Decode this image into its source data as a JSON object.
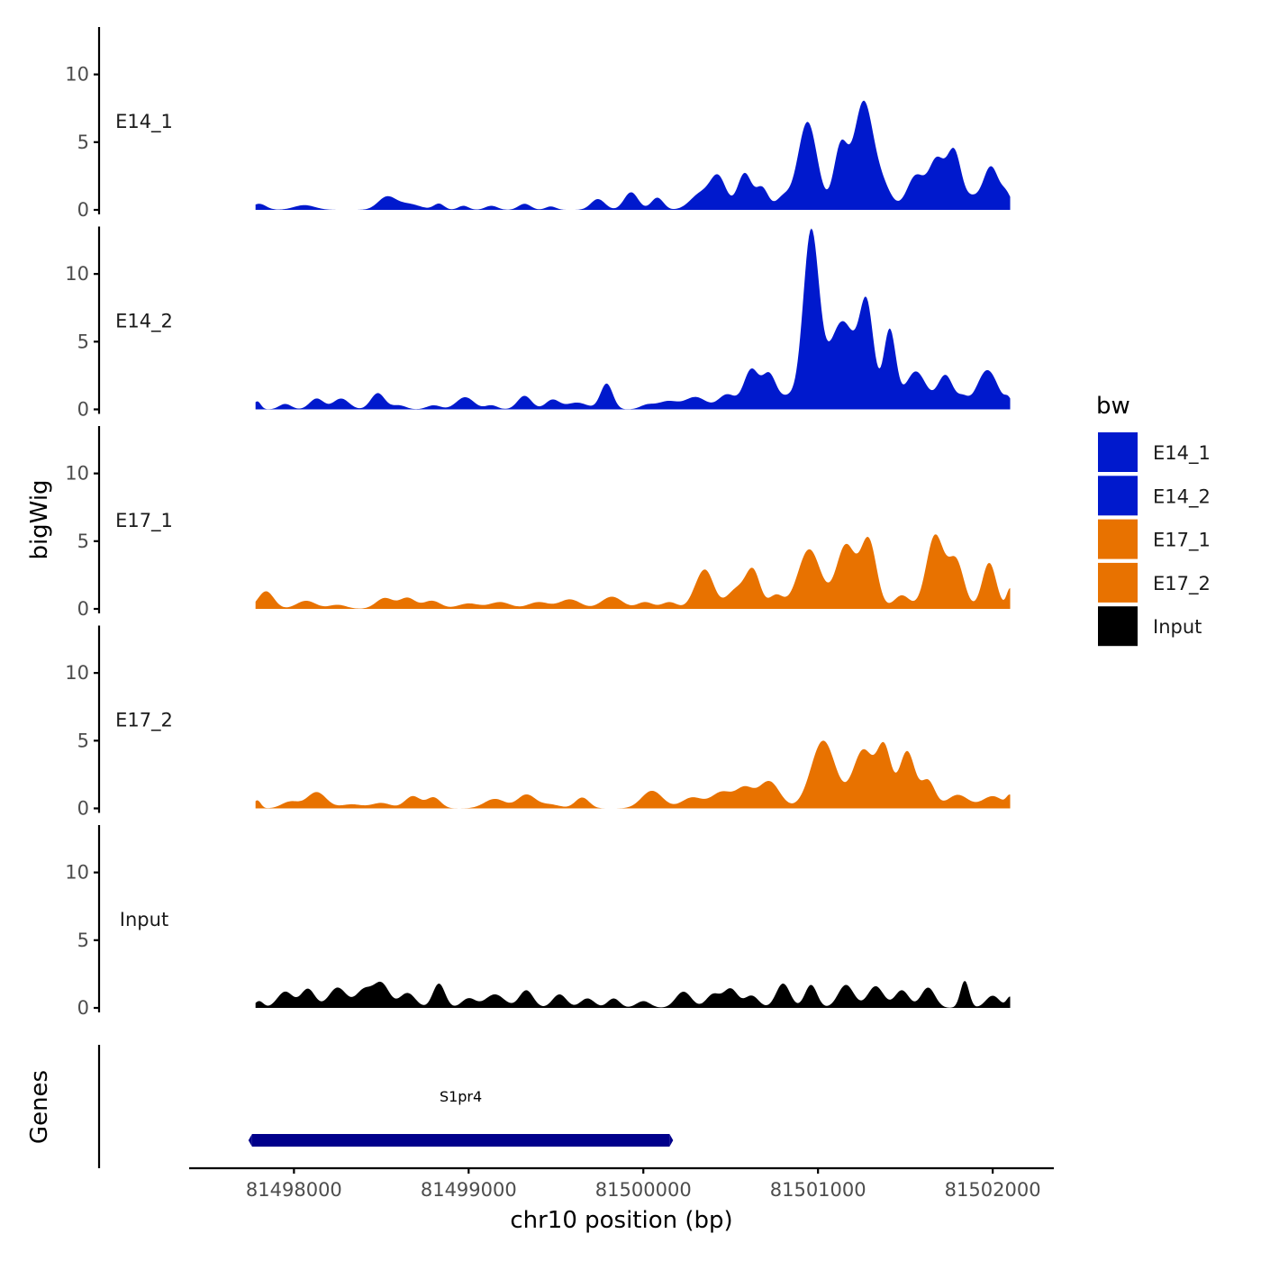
{
  "chart_data": {
    "type": "area",
    "xlabel": "chr10 position (bp)",
    "ylabel": "bigWig",
    "genes_label": "Genes",
    "xlim": [
      81497400,
      81502350
    ],
    "data_x_range": [
      81497780,
      81502100
    ],
    "ylim": [
      0,
      13.5
    ],
    "y_ticks": [
      0,
      5,
      10
    ],
    "x_ticks": [
      81498000,
      81499000,
      81500000,
      81501000,
      81502000
    ],
    "x_tick_labels": [
      "81498000",
      "81499000",
      "81500000",
      "81501000",
      "81502000"
    ],
    "legend": {
      "title": "bw",
      "entries": [
        {
          "label": "E14_1",
          "color": "#0019CD"
        },
        {
          "label": "E14_2",
          "color": "#0019CD"
        },
        {
          "label": "E17_1",
          "color": "#E87200"
        },
        {
          "label": "E17_2",
          "color": "#E87200"
        },
        {
          "label": "Input",
          "color": "#000000"
        }
      ]
    },
    "series": [
      {
        "name": "E14_1",
        "color": "#0019CD",
        "peaks": [
          [
            81497800,
            0.45,
            40
          ],
          [
            81498060,
            0.35,
            60
          ],
          [
            81498530,
            0.9,
            50
          ],
          [
            81498650,
            0.45,
            70
          ],
          [
            81498830,
            0.45,
            30
          ],
          [
            81498970,
            0.3,
            30
          ],
          [
            81499130,
            0.3,
            35
          ],
          [
            81499320,
            0.45,
            35
          ],
          [
            81499470,
            0.25,
            30
          ],
          [
            81499740,
            0.8,
            40
          ],
          [
            81499930,
            1.3,
            40
          ],
          [
            81500080,
            0.9,
            35
          ],
          [
            81500330,
            1.2,
            60
          ],
          [
            81500430,
            2.3,
            45
          ],
          [
            81500580,
            2.7,
            40
          ],
          [
            81500680,
            1.6,
            35
          ],
          [
            81500800,
            0.9,
            40
          ],
          [
            81500940,
            6.5,
            55
          ],
          [
            81501130,
            4.6,
            40
          ],
          [
            81501260,
            7.9,
            55
          ],
          [
            81501370,
            1.6,
            50
          ],
          [
            81501560,
            2.5,
            50
          ],
          [
            81501680,
            3.6,
            45
          ],
          [
            81501780,
            4.2,
            40
          ],
          [
            81501880,
            0.8,
            40
          ],
          [
            81501990,
            3.2,
            45
          ],
          [
            81502080,
            1.0,
            30
          ]
        ]
      },
      {
        "name": "E14_2",
        "color": "#0019CD",
        "peaks": [
          [
            81497790,
            0.6,
            20
          ],
          [
            81497950,
            0.4,
            35
          ],
          [
            81498130,
            0.8,
            40
          ],
          [
            81498270,
            0.8,
            45
          ],
          [
            81498480,
            1.2,
            40
          ],
          [
            81498600,
            0.3,
            40
          ],
          [
            81498800,
            0.3,
            40
          ],
          [
            81498980,
            0.9,
            50
          ],
          [
            81499130,
            0.3,
            35
          ],
          [
            81499320,
            1.0,
            40
          ],
          [
            81499480,
            0.7,
            40
          ],
          [
            81499620,
            0.5,
            60
          ],
          [
            81499790,
            1.9,
            35
          ],
          [
            81500020,
            0.3,
            40
          ],
          [
            81500140,
            0.6,
            60
          ],
          [
            81500300,
            0.9,
            60
          ],
          [
            81500480,
            1.1,
            50
          ],
          [
            81500600,
            1.3,
            40
          ],
          [
            81500630,
            1.8,
            40
          ],
          [
            81500720,
            2.5,
            40
          ],
          [
            81500830,
            0.9,
            50
          ],
          [
            81500960,
            12.8,
            45
          ],
          [
            81501140,
            6.5,
            80
          ],
          [
            81501280,
            6.8,
            40
          ],
          [
            81501410,
            5.8,
            35
          ],
          [
            81501560,
            2.8,
            60
          ],
          [
            81501730,
            2.5,
            45
          ],
          [
            81501830,
            0.7,
            30
          ],
          [
            81501970,
            2.9,
            60
          ],
          [
            81502090,
            0.6,
            20
          ]
        ]
      },
      {
        "name": "E17_1",
        "color": "#E87200",
        "peaks": [
          [
            81497840,
            1.3,
            45
          ],
          [
            81498070,
            0.6,
            55
          ],
          [
            81498250,
            0.3,
            50
          ],
          [
            81498520,
            0.8,
            50
          ],
          [
            81498650,
            0.8,
            45
          ],
          [
            81498790,
            0.6,
            50
          ],
          [
            81499000,
            0.4,
            60
          ],
          [
            81499180,
            0.5,
            60
          ],
          [
            81499400,
            0.5,
            60
          ],
          [
            81499580,
            0.7,
            60
          ],
          [
            81499820,
            0.9,
            60
          ],
          [
            81500010,
            0.5,
            45
          ],
          [
            81500150,
            0.5,
            45
          ],
          [
            81500300,
            0.8,
            40
          ],
          [
            81500360,
            2.6,
            45
          ],
          [
            81500540,
            1.5,
            60
          ],
          [
            81500630,
            2.5,
            40
          ],
          [
            81500760,
            1.0,
            40
          ],
          [
            81500950,
            4.4,
            65
          ],
          [
            81501160,
            4.7,
            55
          ],
          [
            81501290,
            5.0,
            45
          ],
          [
            81501480,
            1.0,
            45
          ],
          [
            81501670,
            5.4,
            50
          ],
          [
            81501790,
            3.5,
            45
          ],
          [
            81501980,
            3.4,
            40
          ],
          [
            81502100,
            1.5,
            20
          ]
        ]
      },
      {
        "name": "E17_2",
        "color": "#E87200",
        "peaks": [
          [
            81497790,
            0.6,
            20
          ],
          [
            81497980,
            0.5,
            50
          ],
          [
            81498130,
            1.2,
            55
          ],
          [
            81498330,
            0.3,
            60
          ],
          [
            81498500,
            0.4,
            55
          ],
          [
            81498680,
            0.9,
            45
          ],
          [
            81498800,
            0.8,
            40
          ],
          [
            81499150,
            0.7,
            60
          ],
          [
            81499330,
            1.0,
            50
          ],
          [
            81499460,
            0.3,
            60
          ],
          [
            81499650,
            0.8,
            40
          ],
          [
            81500050,
            1.3,
            60
          ],
          [
            81500280,
            0.8,
            60
          ],
          [
            81500450,
            1.2,
            60
          ],
          [
            81500580,
            1.4,
            50
          ],
          [
            81500720,
            2.0,
            60
          ],
          [
            81501030,
            5.0,
            70
          ],
          [
            81501260,
            4.3,
            60
          ],
          [
            81501380,
            4.2,
            40
          ],
          [
            81501510,
            4.2,
            45
          ],
          [
            81501630,
            2.0,
            40
          ],
          [
            81501800,
            1.0,
            60
          ],
          [
            81502000,
            0.9,
            60
          ],
          [
            81502100,
            0.8,
            20
          ]
        ]
      },
      {
        "name": "Input",
        "color": "#000000",
        "peaks": [
          [
            81497800,
            0.5,
            25
          ],
          [
            81497950,
            1.2,
            45
          ],
          [
            81498080,
            1.4,
            40
          ],
          [
            81498250,
            1.5,
            50
          ],
          [
            81498400,
            1.3,
            45
          ],
          [
            81498500,
            1.8,
            45
          ],
          [
            81498650,
            1.1,
            45
          ],
          [
            81498830,
            1.8,
            35
          ],
          [
            81499000,
            0.7,
            40
          ],
          [
            81499150,
            1.0,
            55
          ],
          [
            81499330,
            1.3,
            40
          ],
          [
            81499520,
            1.0,
            40
          ],
          [
            81499680,
            0.7,
            40
          ],
          [
            81499830,
            0.7,
            35
          ],
          [
            81500000,
            0.5,
            40
          ],
          [
            81500230,
            1.2,
            45
          ],
          [
            81500400,
            1.0,
            40
          ],
          [
            81500500,
            1.4,
            40
          ],
          [
            81500620,
            0.9,
            40
          ],
          [
            81500800,
            1.8,
            40
          ],
          [
            81500960,
            1.7,
            35
          ],
          [
            81501160,
            1.7,
            45
          ],
          [
            81501330,
            1.6,
            45
          ],
          [
            81501480,
            1.3,
            40
          ],
          [
            81501630,
            1.5,
            40
          ],
          [
            81501840,
            2.0,
            25
          ],
          [
            81502000,
            0.9,
            40
          ],
          [
            81502100,
            0.8,
            20
          ]
        ]
      }
    ],
    "genes": [
      {
        "name": "S1pr4",
        "start": 81497760,
        "end": 81500150,
        "color": "#00008B"
      }
    ]
  }
}
